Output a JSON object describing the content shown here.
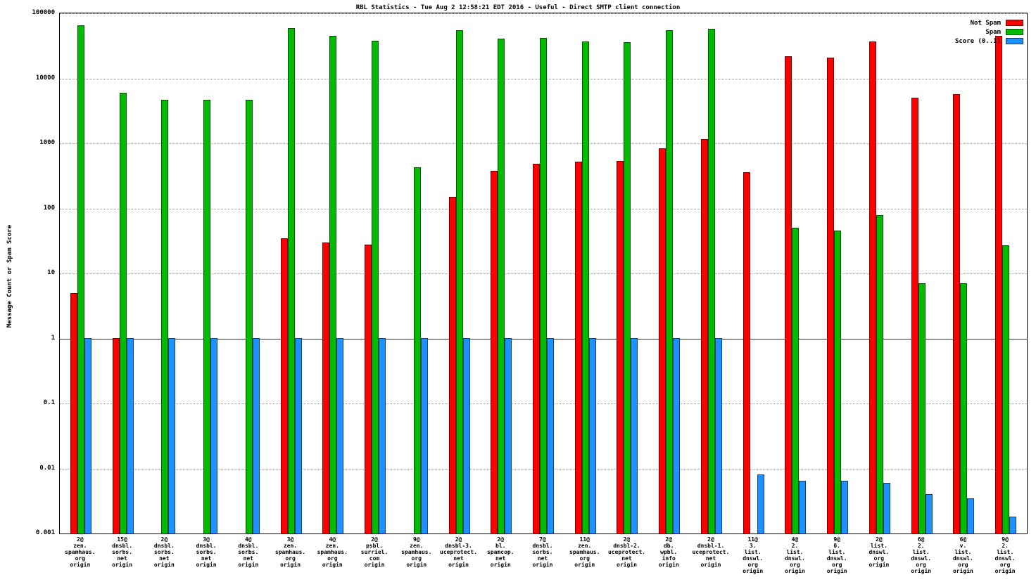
{
  "chart_data": {
    "type": "bar",
    "title": "RBL Statistics - Tue Aug  2 12:58:21 EDT 2016 - Useful - Direct SMTP client connection",
    "ylabel": "Message Count or Spam Score",
    "xlabel": "",
    "y_scale": "log",
    "ylim": [
      0.001,
      100000
    ],
    "ytick_labels": [
      "0.001",
      "0.01",
      "0.1",
      "1",
      "10",
      "100",
      "1000",
      "10000",
      "100000"
    ],
    "grid": true,
    "legend_position": "top-right",
    "categories": [
      [
        "2@",
        "zen.",
        "spamhaus.",
        "org",
        "origin"
      ],
      [
        "15@",
        "dnsbl.",
        "sorbs.",
        "net",
        "origin"
      ],
      [
        "2@",
        "dnsbl.",
        "sorbs.",
        "net",
        "origin"
      ],
      [
        "3@",
        "dnsbl.",
        "sorbs.",
        "net",
        "origin"
      ],
      [
        "4@",
        "dnsbl.",
        "sorbs.",
        "net",
        "origin"
      ],
      [
        "3@",
        "zen.",
        "spamhaus.",
        "org",
        "origin"
      ],
      [
        "4@",
        "zen.",
        "spamhaus.",
        "org",
        "origin"
      ],
      [
        "2@",
        "psbl.",
        "surriel.",
        "com",
        "origin"
      ],
      [
        "9@",
        "zen.",
        "spamhaus.",
        "org",
        "origin"
      ],
      [
        "2@",
        "dnsbl-3.",
        "uceprotect.",
        "net",
        "origin"
      ],
      [
        "2@",
        "bl.",
        "spamcop.",
        "net",
        "origin"
      ],
      [
        "7@",
        "dnsbl.",
        "sorbs.",
        "net",
        "origin"
      ],
      [
        "11@",
        "zen.",
        "spamhaus.",
        "org",
        "origin"
      ],
      [
        "2@",
        "dnsbl-2.",
        "uceprotect.",
        "net",
        "origin"
      ],
      [
        "2@",
        "db.",
        "wpbl.",
        "info",
        "origin"
      ],
      [
        "2@",
        "dnsbl-1.",
        "uceprotect.",
        "net",
        "origin"
      ],
      [
        "11@",
        "3.",
        "list.",
        "dnswl.",
        "org",
        "origin"
      ],
      [
        "4@",
        "2.",
        "list.",
        "dnswl.",
        "org",
        "origin"
      ],
      [
        "9@",
        "0.",
        "list.",
        "dnswl.",
        "org",
        "origin"
      ],
      [
        "2@",
        "list.",
        "dnswl.",
        "org",
        "origin"
      ],
      [
        "6@",
        "2.",
        "list.",
        "dnswl.",
        "org",
        "origin"
      ],
      [
        "6@",
        "v.",
        "list.",
        "dnswl.",
        "org",
        "origin"
      ],
      [
        "9@",
        "2.",
        "list.",
        "dnswl.",
        "org",
        "origin"
      ]
    ],
    "series": [
      {
        "name": "Not Spam",
        "color": "#ff0000",
        "values": [
          5,
          1,
          null,
          null,
          null,
          35,
          30,
          28,
          null,
          150,
          380,
          480,
          520,
          540,
          850,
          1150,
          360,
          22000,
          21000,
          37000,
          5000,
          5700,
          45000
        ]
      },
      {
        "name": "Spam",
        "color": "#00bb00",
        "values": [
          65000,
          6000,
          4700,
          4700,
          4700,
          60000,
          45000,
          38000,
          430,
          55000,
          41000,
          42000,
          37000,
          36000,
          55000,
          58000,
          null,
          50,
          46,
          78,
          7,
          7,
          27
        ]
      },
      {
        "name": "Score (0..1)",
        "color": "#1e90ff",
        "values": [
          1,
          1,
          1,
          1,
          1,
          1,
          1,
          1,
          1,
          1,
          1,
          1,
          1,
          1,
          1,
          1,
          0.008,
          0.0065,
          0.0065,
          0.006,
          0.004,
          0.0035,
          0.0018
        ]
      }
    ]
  }
}
